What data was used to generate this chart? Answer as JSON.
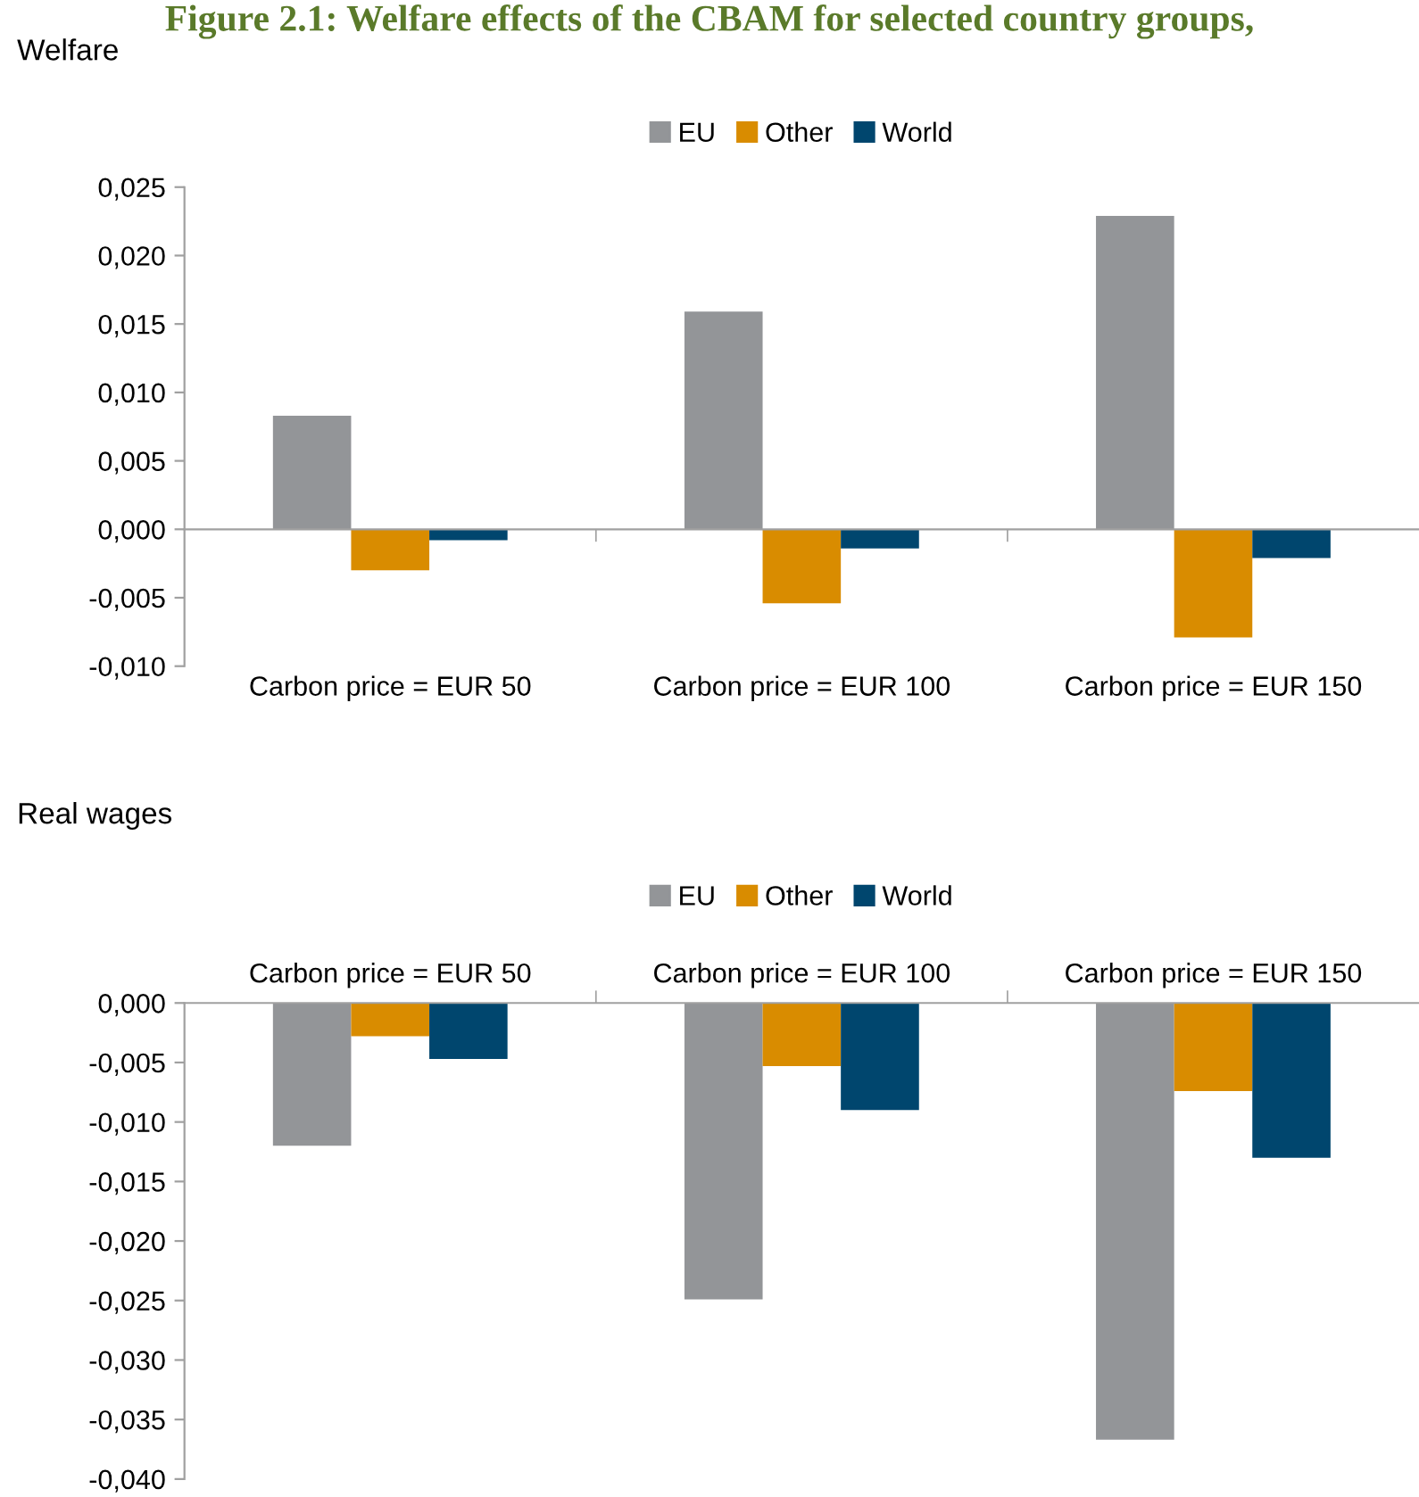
{
  "chart_data": [
    {
      "type": "bar",
      "title": "Welfare",
      "annotations": [
        "Figure 2.1: Welfare effects of the CBAM for selected country groups,"
      ],
      "categories": [
        "Carbon price = EUR 50",
        "Carbon price = EUR 100",
        "Carbon price = EUR 150"
      ],
      "series": [
        {
          "name": "EU",
          "color": "#939598",
          "values": [
            0.0083,
            0.0159,
            0.0229
          ]
        },
        {
          "name": "Other",
          "color": "#d98c00",
          "values": [
            -0.003,
            -0.0054,
            -0.0079
          ]
        },
        {
          "name": "World",
          "color": "#00466e",
          "values": [
            -0.0008,
            -0.0014,
            -0.0021
          ]
        }
      ],
      "ylim": [
        -0.01,
        0.025
      ],
      "yticks": [
        {
          "value": -0.01,
          "label": "-0,010"
        },
        {
          "value": -0.005,
          "label": "-0,005"
        },
        {
          "value": 0,
          "label": "0,000"
        },
        {
          "value": 0.005,
          "label": "0,005"
        },
        {
          "value": 0.01,
          "label": "0,010"
        },
        {
          "value": 0.015,
          "label": "0,015"
        },
        {
          "value": 0.02,
          "label": "0,020"
        },
        {
          "value": 0.025,
          "label": "0,025"
        }
      ],
      "legend": "top"
    },
    {
      "type": "bar",
      "title": "Real wages",
      "categories": [
        "Carbon price = EUR 50",
        "Carbon price = EUR 100",
        "Carbon price = EUR 150"
      ],
      "series": [
        {
          "name": "EU",
          "color": "#939598",
          "values": [
            -0.012,
            -0.0249,
            -0.0367
          ]
        },
        {
          "name": "Other",
          "color": "#d98c00",
          "values": [
            -0.0028,
            -0.0053,
            -0.0074
          ]
        },
        {
          "name": "World",
          "color": "#00466e",
          "values": [
            -0.0047,
            -0.009,
            -0.013
          ]
        }
      ],
      "ylim": [
        -0.04,
        0.0
      ],
      "yticks": [
        {
          "value": -0.04,
          "label": "-0,040"
        },
        {
          "value": -0.035,
          "label": "-0,035"
        },
        {
          "value": -0.03,
          "label": "-0,030"
        },
        {
          "value": -0.025,
          "label": "-0,025"
        },
        {
          "value": -0.02,
          "label": "-0,020"
        },
        {
          "value": -0.015,
          "label": "-0,015"
        },
        {
          "value": -0.01,
          "label": "-0,010"
        },
        {
          "value": -0.005,
          "label": "-0,005"
        },
        {
          "value": 0,
          "label": "0,000"
        }
      ],
      "legend": "top"
    }
  ]
}
